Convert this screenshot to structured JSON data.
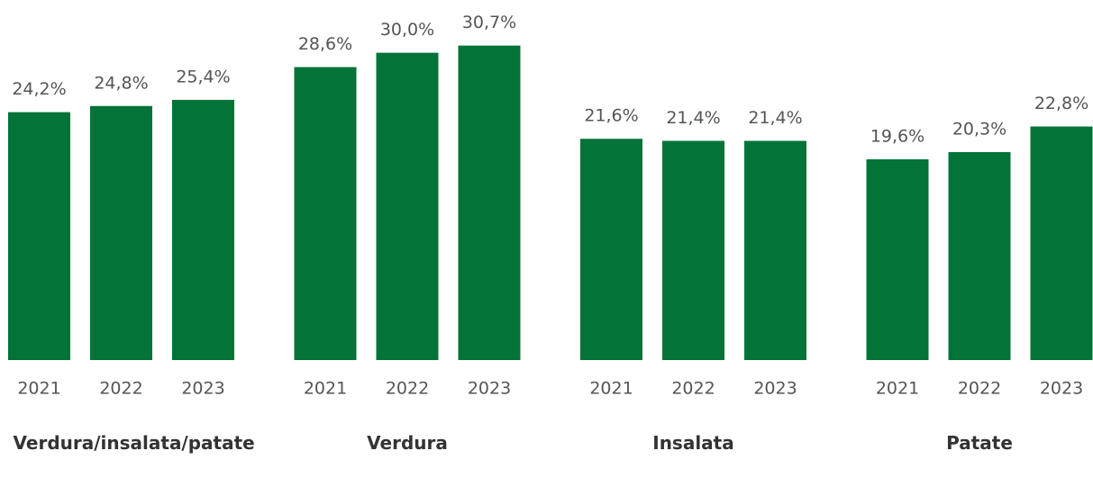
{
  "chart_data": {
    "type": "bar",
    "categories": [
      "Verdura/insalata/patate",
      "Verdura",
      "Insalata",
      "Patate"
    ],
    "color": "#037337",
    "series": [
      {
        "name": "2021",
        "values": [
          24.2,
          28.6,
          21.6,
          19.6
        ],
        "value_labels": [
          "24,2%",
          "28,6%",
          "21,6%",
          "19,6%"
        ]
      },
      {
        "name": "2022",
        "values": [
          24.8,
          30.0,
          21.4,
          20.3
        ],
        "value_labels": [
          "24,8%",
          "30,0%",
          "21,4%",
          "20,3%"
        ]
      },
      {
        "name": "2023",
        "values": [
          25.4,
          30.7,
          21.4,
          22.8
        ],
        "value_labels": [
          "25,4%",
          "30,7%",
          "21,4%",
          "22,8%"
        ]
      }
    ]
  }
}
